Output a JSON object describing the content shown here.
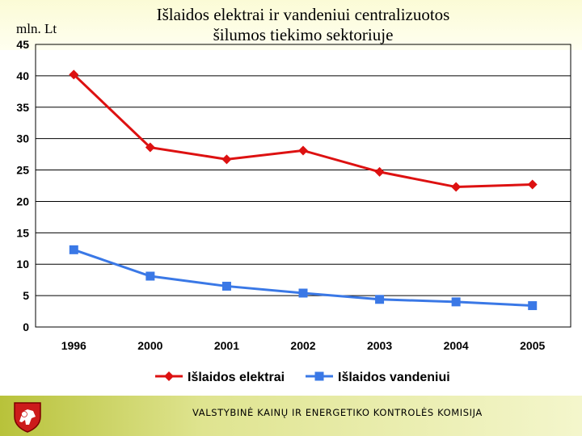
{
  "header": {
    "title_line1": "Išlaidos elektrai ir vandeniui centralizuotos",
    "title_line2": "šilumos tiekimo sektoriuje",
    "unit_label": "mln. Lt"
  },
  "footer": {
    "organization": "VALSTYBINĖ KAINŲ IR ENERGETIKO KONTROLĖS KOMISIJA",
    "logo_icon": "coat-of-arms-icon"
  },
  "colors": {
    "electricity": "#dd1111",
    "water": "#3a78e6",
    "band": "#fbfbd6",
    "footer": "#c6ce55"
  },
  "chart_data": {
    "type": "line",
    "title": "Išlaidos elektrai ir vandeniui centralizuotos šilumos tiekimo sektoriuje",
    "ylabel": "mln. Lt",
    "xlabel": "",
    "categories": [
      "1996",
      "2000",
      "2001",
      "2002",
      "2003",
      "2004",
      "2005"
    ],
    "ylim": [
      0,
      45
    ],
    "yticks": [
      0,
      5,
      10,
      15,
      20,
      25,
      30,
      35,
      40,
      45
    ],
    "grid": true,
    "legend": "bottom",
    "series": [
      {
        "name": "Išlaidos elektrai",
        "marker": "diamond",
        "color": "#dd1111",
        "values": [
          40.2,
          28.6,
          26.7,
          28.1,
          24.7,
          22.3,
          22.7
        ]
      },
      {
        "name": "Išlaidos vandeniui",
        "marker": "square",
        "color": "#3a78e6",
        "values": [
          12.3,
          8.1,
          6.5,
          5.4,
          4.4,
          4.0,
          3.4
        ]
      }
    ]
  }
}
